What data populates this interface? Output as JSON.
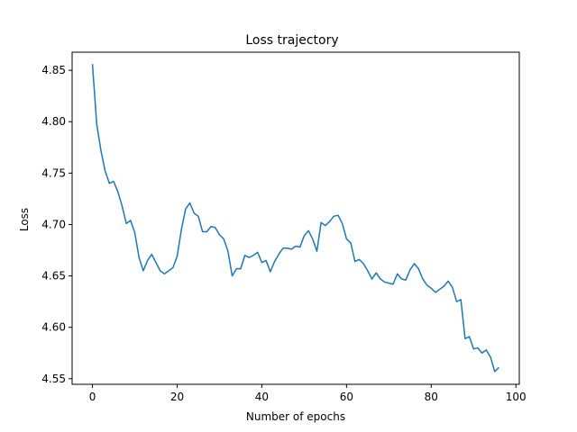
{
  "chart_data": {
    "type": "line",
    "title": "Loss trajectory",
    "xlabel": "Number of epochs",
    "ylabel": "Loss",
    "xlim": [
      -4.8,
      100.8
    ],
    "ylim": [
      4.5446,
      4.8676
    ],
    "xticks": [
      0,
      20,
      40,
      60,
      80,
      100
    ],
    "xtick_labels": [
      "0",
      "20",
      "40",
      "60",
      "80",
      "100"
    ],
    "yticks": [
      4.55,
      4.6,
      4.65,
      4.7,
      4.75,
      4.8,
      4.85
    ],
    "ytick_labels": [
      "4.55",
      "4.60",
      "4.65",
      "4.70",
      "4.75",
      "4.80",
      "4.85"
    ],
    "grid": false,
    "line_color": "#1f77b4",
    "series": [
      {
        "x": [
          0,
          1,
          2,
          3,
          4,
          5,
          6,
          7,
          8,
          9,
          10,
          11,
          12,
          13,
          14,
          15,
          16,
          17,
          18,
          19,
          20,
          21,
          22,
          23,
          24,
          25,
          26,
          27,
          28,
          29,
          30,
          31,
          32,
          33,
          34,
          35,
          36,
          37,
          38,
          39,
          40,
          41,
          42,
          43,
          44,
          45,
          46,
          47,
          48,
          49,
          50,
          51,
          52,
          53,
          54,
          55,
          56,
          57,
          58,
          59,
          60,
          61,
          62,
          63,
          64,
          65,
          66,
          67,
          68,
          69,
          70,
          71,
          72,
          73,
          74,
          75,
          76,
          77,
          78,
          79,
          80,
          81,
          82,
          83,
          84,
          85,
          86,
          87,
          88,
          89,
          90,
          91,
          92,
          93,
          94,
          95,
          96
        ],
        "values": [
          4.856,
          4.798,
          4.772,
          4.752,
          4.74,
          4.742,
          4.732,
          4.718,
          4.701,
          4.704,
          4.692,
          4.668,
          4.655,
          4.665,
          4.671,
          4.663,
          4.655,
          4.652,
          4.655,
          4.658,
          4.669,
          4.695,
          4.715,
          4.721,
          4.711,
          4.708,
          4.693,
          4.693,
          4.698,
          4.697,
          4.69,
          4.686,
          4.674,
          4.65,
          4.657,
          4.657,
          4.67,
          4.668,
          4.67,
          4.673,
          4.663,
          4.665,
          4.654,
          4.664,
          4.671,
          4.677,
          4.677,
          4.676,
          4.679,
          4.678,
          4.689,
          4.694,
          4.686,
          4.674,
          4.702,
          4.699,
          4.703,
          4.708,
          4.709,
          4.701,
          4.686,
          4.682,
          4.664,
          4.666,
          4.662,
          4.655,
          4.647,
          4.653,
          4.647,
          4.644,
          4.643,
          4.642,
          4.652,
          4.647,
          4.646,
          4.656,
          4.662,
          4.657,
          4.647,
          4.641,
          4.638,
          4.634,
          4.637,
          4.64,
          4.645,
          4.639,
          4.625,
          4.627,
          4.589,
          4.591,
          4.579,
          4.58,
          4.575,
          4.578,
          4.571,
          4.557,
          4.561
        ]
      }
    ]
  }
}
